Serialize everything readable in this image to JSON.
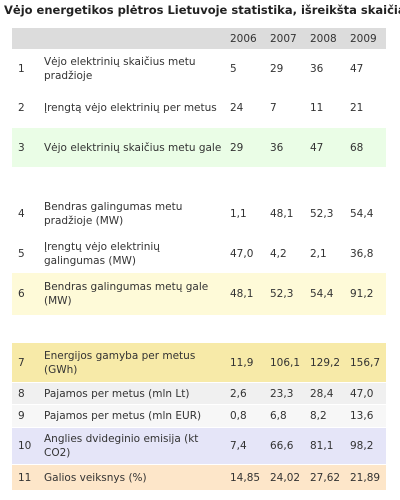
{
  "header": {
    "title": "Vėjo energetikos plėtros Lietuvoje statistika, išreikšta skaičiais"
  },
  "table": {
    "columns": [
      "2006",
      "2007",
      "2008",
      "2009"
    ],
    "rows": [
      [
        "1",
        "Vėjo elektrinių skaičius metu pradžioje",
        "5",
        "29",
        "36",
        "47"
      ],
      [
        "2",
        "Įrengtą vėjo elektrinių per metus",
        "24",
        "7",
        "11",
        "21"
      ],
      [
        "3",
        "Vėjo elektrinių skaičius metu gale",
        "29",
        "36",
        "47",
        "68"
      ],
      [
        "4",
        "Bendras galingumas metu pradžioje (MW)",
        "1,1",
        "48,1",
        "52,3",
        "54,4"
      ],
      [
        "5",
        "Įrengtų vėjo elektrinių galingumas (MW)",
        "47,0",
        "4,2",
        "2,1",
        "36,8"
      ],
      [
        "6",
        "Bendras galingumas metų gale (MW)",
        "48,1",
        "52,3",
        "54,4",
        "91,2"
      ],
      [
        "7",
        "Energijos gamyba per metus (GWh)",
        "11,9",
        "106,1",
        "129,2",
        "156,7"
      ],
      [
        "8",
        "Pajamos per metus (mln Lt)",
        "2,6",
        "23,3",
        "28,4",
        "47,0"
      ],
      [
        "9",
        "Pajamos per metus (mln EUR)",
        "0,8",
        "6,8",
        "8,2",
        "13,6"
      ],
      [
        "10",
        "Anglies dvideginio emisija (kt CO2)",
        "7,4",
        "66,6",
        "81,1",
        "98,2"
      ],
      [
        "11",
        "Galios veiksnys (%)",
        "14,85",
        "24,02",
        "27,62",
        "21,89"
      ]
    ]
  }
}
